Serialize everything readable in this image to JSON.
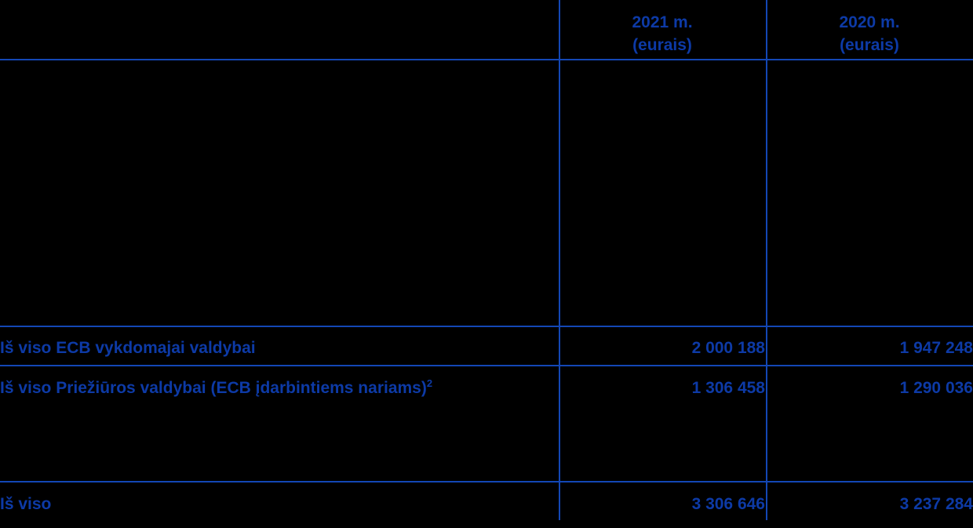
{
  "table": {
    "colors": {
      "background": "#000000",
      "text_blue": "#0d3aa6",
      "line_blue": "#1347b5"
    },
    "columns": {
      "y2021": {
        "header_line1": "2021 m.",
        "header_line2": "(eurais)"
      },
      "y2020": {
        "header_line1": "2020 m.",
        "header_line2": "(eurais)"
      }
    },
    "rows": {
      "ecb_executive_board": {
        "label": "Iš viso ECB vykdomajai valdybai",
        "value_2021": "2 000 188",
        "value_2020": "1 947 248"
      },
      "supervisory_board": {
        "label": "Iš viso Priežiūros valdybai (ECB įdarbintiems nariams)",
        "footnote_marker": "2",
        "value_2021": "1 306 458",
        "value_2020": "1 290 036"
      },
      "total": {
        "label": "Iš viso",
        "value_2021": "3 306 646",
        "value_2020": "3 237 284"
      }
    }
  }
}
